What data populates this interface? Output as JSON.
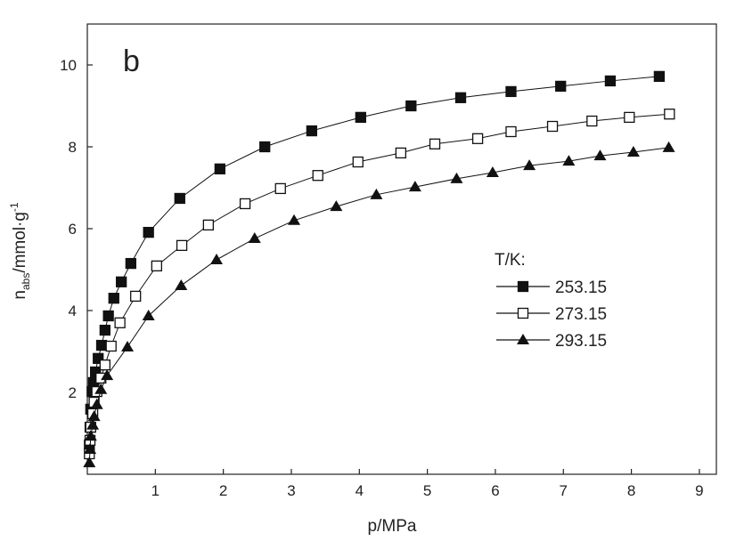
{
  "chart_data": {
    "type": "line",
    "annotation": "b",
    "xlabel": "p/MPa",
    "ylabel": {
      "main": "n",
      "sub": "abs",
      "rest": "/mmol·g",
      "sup": "-1"
    },
    "legend_title": "T/K:",
    "xlim": [
      0,
      9.25
    ],
    "ylim": [
      0,
      11
    ],
    "xticks": [
      1,
      2,
      3,
      4,
      5,
      6,
      7,
      8,
      9
    ],
    "yticks": [
      2,
      4,
      6,
      8,
      10
    ],
    "series": [
      {
        "name": "253.15",
        "color": "#111111",
        "marker": "square",
        "x": [
          0.03,
          0.04,
          0.05,
          0.07,
          0.09,
          0.12,
          0.16,
          0.21,
          0.26,
          0.31,
          0.39,
          0.5,
          0.64,
          0.9,
          1.36,
          1.95,
          2.61,
          3.3,
          4.02,
          4.76,
          5.49,
          6.23,
          6.96,
          7.69,
          8.41
        ],
        "values": [
          0.72,
          1.15,
          1.59,
          2.02,
          2.24,
          2.5,
          2.83,
          3.15,
          3.52,
          3.87,
          4.3,
          4.7,
          5.15,
          5.91,
          6.74,
          7.46,
          8.0,
          8.39,
          8.72,
          9.0,
          9.2,
          9.35,
          9.48,
          9.61,
          9.72
        ]
      },
      {
        "name": "273.15",
        "color": "#111111",
        "marker": "square-open",
        "x": [
          0.03,
          0.04,
          0.05,
          0.08,
          0.1,
          0.14,
          0.2,
          0.26,
          0.35,
          0.48,
          0.71,
          1.02,
          1.39,
          1.78,
          2.32,
          2.84,
          3.39,
          3.98,
          4.61,
          5.11,
          5.74,
          6.23,
          6.84,
          7.42,
          7.97,
          8.56
        ],
        "values": [
          0.5,
          0.83,
          1.15,
          1.48,
          1.76,
          2.02,
          2.35,
          2.67,
          3.13,
          3.7,
          4.35,
          5.09,
          5.59,
          6.09,
          6.61,
          6.98,
          7.3,
          7.63,
          7.85,
          8.07,
          8.2,
          8.37,
          8.5,
          8.63,
          8.72,
          8.8
        ]
      },
      {
        "name": "293.15",
        "color": "#111111",
        "marker": "triangle",
        "x": [
          0.03,
          0.04,
          0.05,
          0.08,
          0.1,
          0.14,
          0.2,
          0.29,
          0.59,
          0.9,
          1.38,
          1.9,
          2.46,
          3.04,
          3.66,
          4.25,
          4.82,
          5.43,
          5.96,
          6.5,
          7.08,
          7.54,
          8.03,
          8.55
        ],
        "values": [
          0.28,
          0.61,
          0.93,
          1.2,
          1.41,
          1.7,
          2.07,
          2.41,
          3.11,
          3.87,
          4.61,
          5.24,
          5.76,
          6.2,
          6.54,
          6.83,
          7.02,
          7.22,
          7.37,
          7.54,
          7.65,
          7.78,
          7.87,
          7.98
        ]
      }
    ]
  }
}
